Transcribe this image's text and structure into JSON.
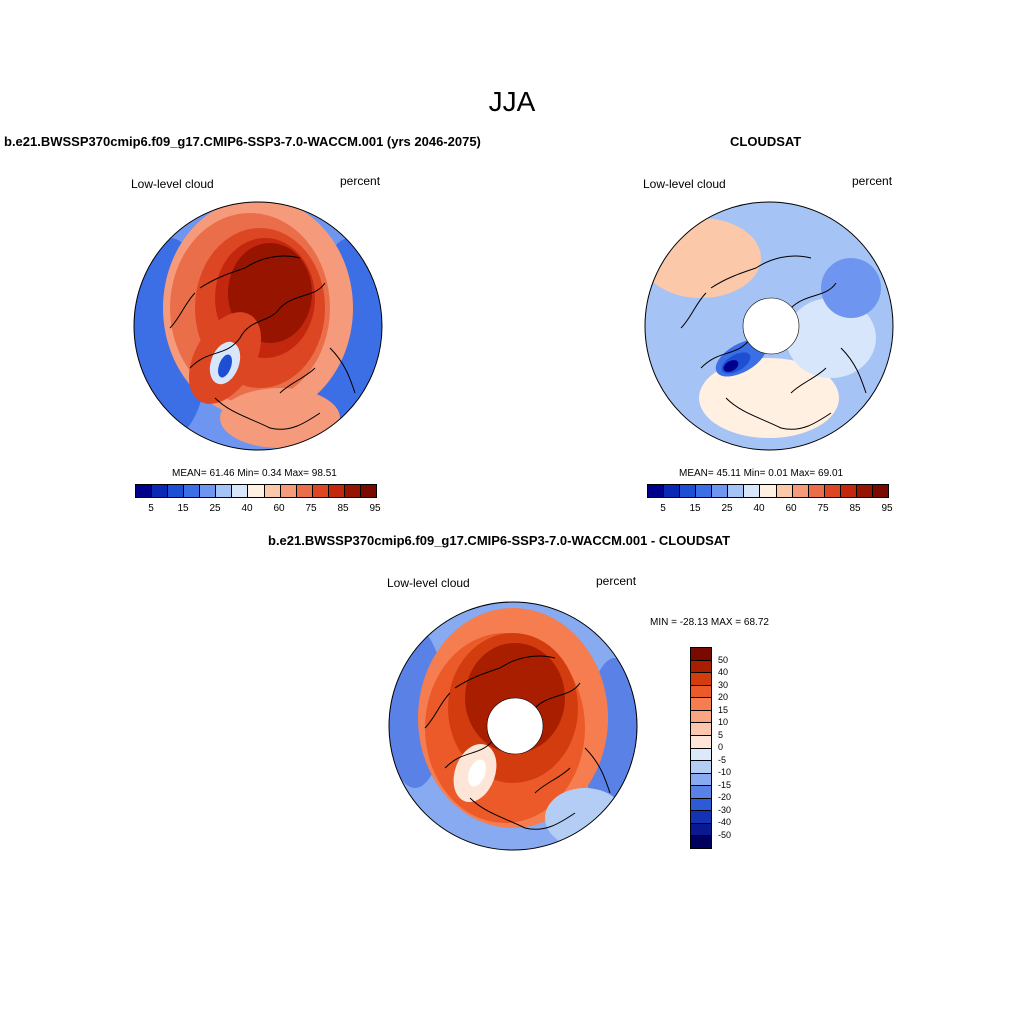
{
  "page": {
    "title": "JJA"
  },
  "panels": [
    {
      "id": "model",
      "title": "b.e21.BWSSP370cmip6.f09_g17.CMIP6-SSP3-7.0-WACCM.001 (yrs 2046-2075)",
      "left_label": "Low-level cloud",
      "right_label": "percent",
      "stats": "MEAN=  61.46  Min=   0.34  Max=  98.51",
      "pole_hole": false
    },
    {
      "id": "obs",
      "title": "CLOUDSAT",
      "left_label": "Low-level cloud",
      "right_label": "percent",
      "stats": "MEAN=  45.11  Min=   0.01  Max=  69.01",
      "pole_hole": true
    },
    {
      "id": "diff",
      "title": "b.e21.BWSSP370cmip6.f09_g17.CMIP6-SSP3-7.0-WACCM.001 - CLOUDSAT",
      "left_label": "Low-level cloud",
      "right_label": "percent",
      "stats": "MIN = -28.13 MAX =  68.72",
      "pole_hole": true
    }
  ],
  "colorbar_abs": {
    "colors": [
      "#00008b",
      "#0a28b4",
      "#1e4ed2",
      "#3c6ee6",
      "#6e96f0",
      "#a5c3f5",
      "#d7e6fa",
      "#fff0e1",
      "#fbc8aa",
      "#f59a7a",
      "#eb6e4b",
      "#dc4623",
      "#c3280f",
      "#961400",
      "#780a00"
    ],
    "tick_labels": [
      "5",
      "15",
      "25",
      "40",
      "60",
      "75",
      "85",
      "95"
    ]
  },
  "colorbar_diff": {
    "colors": [
      "#780a00",
      "#aa1e00",
      "#d23c0f",
      "#eb5a28",
      "#f57d50",
      "#f9a582",
      "#fcc8ad",
      "#fde6d7",
      "#dce9fa",
      "#b4cdf5",
      "#87aaf0",
      "#5a82e6",
      "#2d5ad7",
      "#1432b4",
      "#0a1991",
      "#00005f"
    ],
    "tick_labels": [
      "50",
      "40",
      "30",
      "20",
      "15",
      "10",
      "5",
      "0",
      "-5",
      "-10",
      "-15",
      "-20",
      "-30",
      "-40",
      "-50"
    ]
  }
}
